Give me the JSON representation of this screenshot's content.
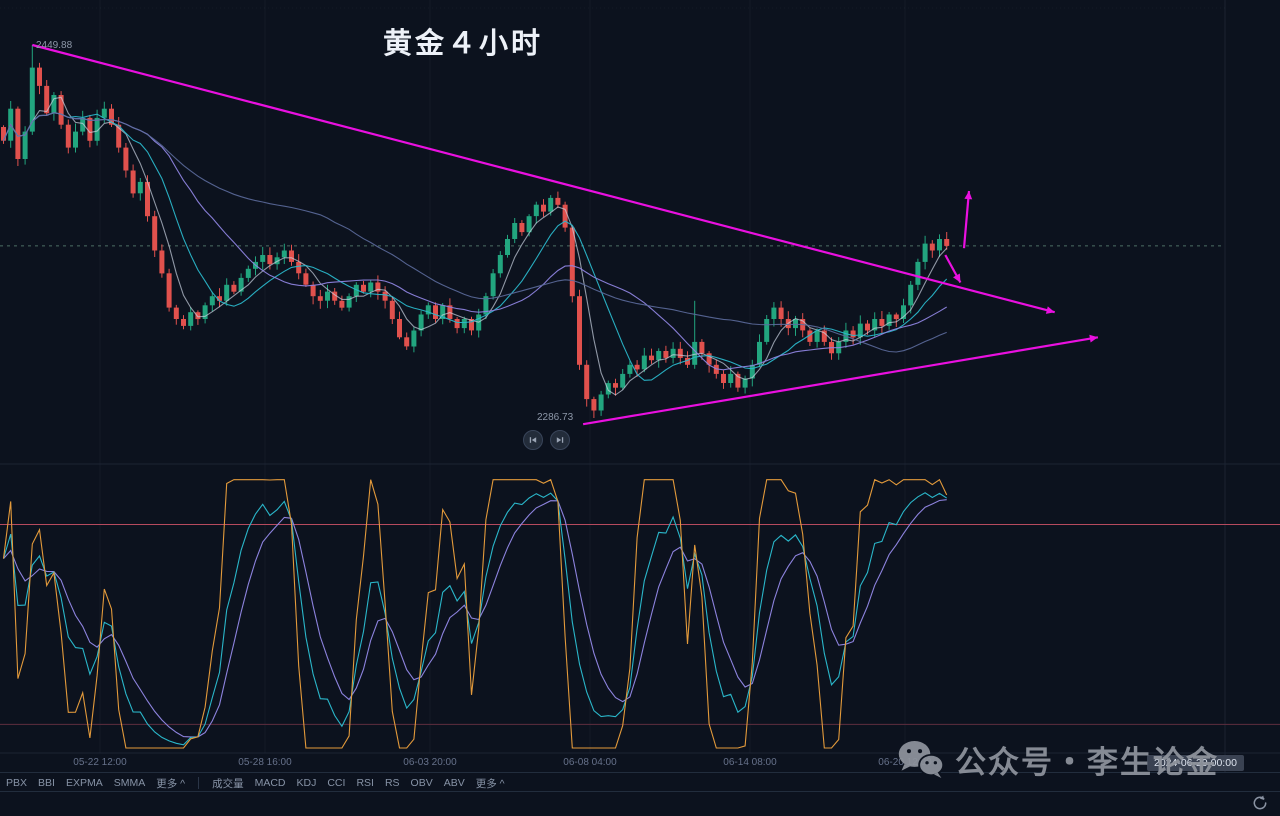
{
  "app": {
    "title": "黄金４小时",
    "watermark_text": "公众号・李生论金",
    "icons": {
      "watermark": "wechat-icon",
      "refresh": "refresh-icon",
      "playback": [
        "skip-back-icon",
        "skip-forward-icon"
      ]
    }
  },
  "chart_data": {
    "type": "candlestick",
    "symbol_title": "黄金４小时",
    "timeframe": "4小时",
    "price_label_high": "2449.88",
    "price_label_low": "2286.73",
    "last_price": 2362,
    "anchor": {
      "price_high": 2449.88,
      "price_low": 2286.73
    },
    "up_color": "#22a57f",
    "down_color": "#e1514d",
    "closes": [
      2408,
      2422,
      2400,
      2412,
      2440,
      2432,
      2420,
      2428,
      2415,
      2405,
      2412,
      2418,
      2408,
      2418,
      2422,
      2415,
      2405,
      2395,
      2385,
      2390,
      2375,
      2360,
      2350,
      2335,
      2330,
      2327,
      2333,
      2330,
      2336,
      2340,
      2338,
      2345,
      2342,
      2348,
      2352,
      2355,
      2358,
      2354,
      2357,
      2360,
      2355,
      2350,
      2345,
      2340,
      2338,
      2342,
      2338,
      2335,
      2340,
      2345,
      2342,
      2346,
      2342,
      2338,
      2330,
      2322,
      2318,
      2325,
      2332,
      2336,
      2330,
      2336,
      2330,
      2326,
      2330,
      2325,
      2332,
      2340,
      2350,
      2358,
      2365,
      2372,
      2368,
      2375,
      2380,
      2377,
      2383,
      2380,
      2370,
      2340,
      2310,
      2295,
      2290,
      2297,
      2302,
      2300,
      2306,
      2310,
      2308,
      2314,
      2312,
      2316,
      2313,
      2317,
      2313,
      2310,
      2320,
      2315,
      2310,
      2306,
      2302,
      2306,
      2300,
      2304,
      2310,
      2320,
      2330,
      2335,
      2330,
      2326,
      2330,
      2325,
      2320,
      2325,
      2320,
      2315,
      2320,
      2325,
      2322,
      2328,
      2325,
      2330,
      2327,
      2332,
      2330,
      2336,
      2345,
      2355,
      2363,
      2360,
      2365,
      2362
    ],
    "high_overrides": {
      "4": 2449.88,
      "96": 2338
    },
    "low_overrides": {
      "82": 2286.73
    },
    "ma_lines": [
      {
        "name": "MA5",
        "period": 5,
        "color": "#c9d2df",
        "opacity": 0.7
      },
      {
        "name": "MA10",
        "period": 10,
        "color": "#2ab6c9",
        "opacity": 0.95
      },
      {
        "name": "MA20",
        "period": 20,
        "color": "#8d83de",
        "opacity": 0.95
      },
      {
        "name": "MA45",
        "period": 45,
        "color": "#5c6b9c",
        "opacity": 0.9
      }
    ],
    "annotation_color": "#ea10e0",
    "trend_annotations": [
      {
        "name": "descending-trendline",
        "i1": 4,
        "p1": 2449.9,
        "i2": 146,
        "p2": 2333
      },
      {
        "name": "ascending-trendline",
        "i1": 80.5,
        "p1": 2284,
        "i2": 152,
        "p2": 2322
      },
      {
        "name": "pullback-arrow",
        "i1": 130.8,
        "p1": 2358,
        "i2": 132.9,
        "p2": 2346
      },
      {
        "name": "breakout-arrow",
        "i1": 133.4,
        "p1": 2361,
        "i2": 134.1,
        "p2": 2386
      }
    ],
    "sub_indicator": {
      "name": "oscillator",
      "lines": [
        {
          "name": "J",
          "color": "#e39a3b"
        },
        {
          "name": "K",
          "color": "#2ab6c9"
        },
        {
          "name": "D",
          "color": "#8d83de"
        }
      ],
      "levels": [
        {
          "value": 85,
          "color": "#b64a5e"
        },
        {
          "value": 9,
          "color": "#5e2e3e"
        }
      ]
    }
  },
  "axis": {
    "date_labels": [
      "05-22 12:00",
      "05-28 16:00",
      "06-03 20:00",
      "06-08 04:00",
      "06-14 08:00",
      "06-20 12:00"
    ],
    "current_date_label": "2024-06-29 00:00"
  },
  "toolbar": {
    "overlay_items": [
      "PBX",
      "BBI",
      "EXPMA",
      "SMMA"
    ],
    "overlay_more": "更多",
    "sub_items": [
      "成交量",
      "MACD",
      "KDJ",
      "CCI",
      "RSI",
      "RS",
      "OBV",
      "ABV"
    ],
    "sub_more": "更多"
  }
}
